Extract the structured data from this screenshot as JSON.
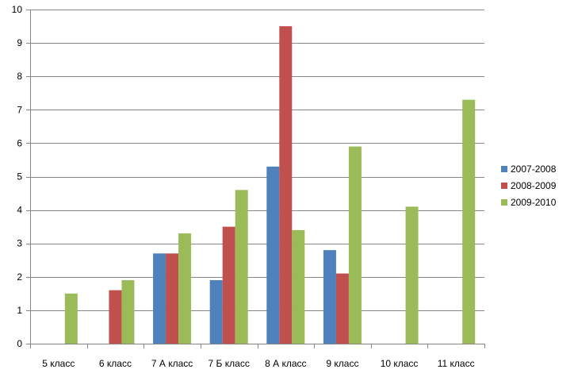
{
  "chart_data": {
    "type": "bar",
    "title": "",
    "xlabel": "",
    "ylabel": "",
    "categories": [
      "5 класс",
      "6 класс",
      "7 А класс",
      "7 Б класс",
      "8 А класс",
      "9 класс",
      "10 класс",
      "11 класс"
    ],
    "series": [
      {
        "name": "2007-2008",
        "color": "#4F81BD",
        "values": [
          null,
          null,
          2.7,
          1.9,
          5.3,
          2.8,
          null,
          null
        ]
      },
      {
        "name": "2008-2009",
        "color": "#C0504D",
        "values": [
          null,
          1.6,
          2.7,
          3.5,
          9.5,
          2.1,
          null,
          null
        ]
      },
      {
        "name": "2009-2010",
        "color": "#9BBB59",
        "values": [
          1.5,
          1.9,
          3.3,
          4.6,
          3.4,
          5.9,
          4.1,
          7.3
        ]
      }
    ],
    "ylim": [
      0,
      10
    ],
    "yticks": [
      0,
      1,
      2,
      3,
      4,
      5,
      6,
      7,
      8,
      9,
      10
    ],
    "grid": true,
    "legend_position": "right"
  }
}
